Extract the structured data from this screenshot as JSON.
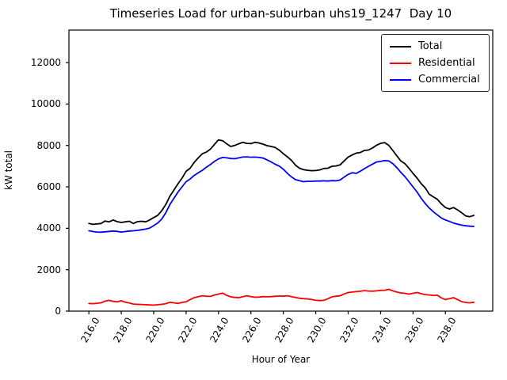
{
  "figure": {
    "background": "#ffffff",
    "text_color": "#000000"
  },
  "chart_data": {
    "type": "line",
    "title": "Timeseries Load for urban-suburban uhs19_1247  Day 10",
    "xlabel": "Hour of Year",
    "ylabel": "kW total",
    "grid": false,
    "xlim": [
      214.77,
      240.92
    ],
    "ylim": [
      0,
      13570
    ],
    "xticks": {
      "values": [
        216,
        218,
        220,
        222,
        224,
        226,
        228,
        230,
        232,
        234,
        236,
        238
      ],
      "labels": [
        "216.0",
        "218.0",
        "220.0",
        "222.0",
        "224.0",
        "226.0",
        "228.0",
        "230.0",
        "232.0",
        "234.0",
        "236.0",
        "238.0"
      ]
    },
    "yticks": {
      "values": [
        0,
        2000,
        4000,
        6000,
        8000,
        10000,
        12000
      ],
      "labels": [
        "0",
        "2000",
        "4000",
        "6000",
        "8000",
        "10000",
        "12000"
      ]
    },
    "legend": {
      "position": "upper right",
      "entries": [
        {
          "label": "Total",
          "color": "#000000"
        },
        {
          "label": "Residential",
          "color": "#ff0000"
        },
        {
          "label": "Commercial",
          "color": "#0000ff"
        }
      ]
    },
    "x": [
      216.0,
      216.25,
      216.5,
      216.75,
      217.0,
      217.25,
      217.5,
      217.75,
      218.0,
      218.25,
      218.5,
      218.75,
      219.0,
      219.25,
      219.5,
      219.75,
      220.0,
      220.25,
      220.5,
      220.75,
      221.0,
      221.25,
      221.5,
      221.75,
      222.0,
      222.25,
      222.5,
      222.75,
      223.0,
      223.25,
      223.5,
      223.75,
      224.0,
      224.25,
      224.5,
      224.75,
      225.0,
      225.25,
      225.5,
      225.75,
      226.0,
      226.25,
      226.5,
      226.75,
      227.0,
      227.25,
      227.5,
      227.75,
      228.0,
      228.25,
      228.5,
      228.75,
      229.0,
      229.25,
      229.5,
      229.75,
      230.0,
      230.25,
      230.5,
      230.75,
      231.0,
      231.25,
      231.5,
      231.75,
      232.0,
      232.25,
      232.5,
      232.75,
      233.0,
      233.25,
      233.5,
      233.75,
      234.0,
      234.25,
      234.5,
      234.75,
      235.0,
      235.25,
      235.5,
      235.75,
      236.0,
      236.25,
      236.5,
      236.75,
      237.0,
      237.25,
      237.5,
      237.75,
      238.0,
      238.25,
      238.5,
      238.75,
      239.0,
      239.25,
      239.5,
      239.75
    ],
    "series": [
      {
        "name": "Total",
        "color": "#000000",
        "values": [
          4230,
          4190,
          4210,
          4230,
          4350,
          4310,
          4400,
          4320,
          4280,
          4310,
          4340,
          4230,
          4320,
          4340,
          4310,
          4400,
          4520,
          4620,
          4850,
          5150,
          5550,
          5850,
          6150,
          6420,
          6750,
          6900,
          7180,
          7400,
          7600,
          7680,
          7820,
          8050,
          8270,
          8230,
          8080,
          7950,
          8000,
          8080,
          8150,
          8100,
          8090,
          8150,
          8120,
          8060,
          7990,
          7950,
          7900,
          7770,
          7600,
          7450,
          7280,
          7050,
          6900,
          6830,
          6800,
          6780,
          6790,
          6820,
          6890,
          6900,
          6990,
          7010,
          7060,
          7250,
          7440,
          7540,
          7630,
          7660,
          7760,
          7780,
          7880,
          8010,
          8100,
          8140,
          8010,
          7760,
          7500,
          7250,
          7120,
          6900,
          6650,
          6420,
          6160,
          5950,
          5650,
          5520,
          5400,
          5180,
          5000,
          4930,
          5000,
          4890,
          4750,
          4600,
          4560,
          4620
        ]
      },
      {
        "name": "Residential",
        "color": "#ff0000",
        "values": [
          370,
          360,
          380,
          400,
          480,
          520,
          470,
          450,
          500,
          430,
          390,
          340,
          330,
          320,
          310,
          300,
          290,
          310,
          330,
          360,
          430,
          400,
          370,
          420,
          450,
          560,
          650,
          700,
          740,
          720,
          710,
          780,
          820,
          870,
          760,
          690,
          660,
          650,
          700,
          740,
          700,
          670,
          680,
          700,
          690,
          700,
          720,
          730,
          720,
          740,
          700,
          660,
          620,
          600,
          590,
          560,
          520,
          510,
          520,
          600,
          690,
          720,
          740,
          830,
          900,
          920,
          940,
          960,
          990,
          970,
          960,
          980,
          1000,
          1010,
          1050,
          980,
          920,
          880,
          860,
          820,
          860,
          900,
          840,
          800,
          780,
          760,
          770,
          640,
          560,
          600,
          650,
          560,
          460,
          420,
          400,
          430
        ]
      },
      {
        "name": "Commercial",
        "color": "#0000ff",
        "values": [
          3880,
          3840,
          3820,
          3810,
          3830,
          3850,
          3870,
          3850,
          3820,
          3840,
          3870,
          3880,
          3900,
          3930,
          3960,
          4010,
          4130,
          4250,
          4450,
          4750,
          5150,
          5450,
          5750,
          6000,
          6250,
          6380,
          6550,
          6680,
          6800,
          6950,
          7080,
          7230,
          7350,
          7420,
          7400,
          7370,
          7360,
          7400,
          7440,
          7450,
          7430,
          7440,
          7420,
          7390,
          7300,
          7200,
          7090,
          7000,
          6850,
          6650,
          6480,
          6350,
          6300,
          6250,
          6270,
          6270,
          6280,
          6280,
          6290,
          6280,
          6300,
          6290,
          6330,
          6470,
          6600,
          6680,
          6650,
          6760,
          6880,
          6990,
          7100,
          7200,
          7230,
          7270,
          7250,
          7120,
          6930,
          6700,
          6500,
          6250,
          6000,
          5750,
          5450,
          5200,
          4980,
          4800,
          4650,
          4500,
          4400,
          4330,
          4250,
          4200,
          4150,
          4120,
          4100,
          4090
        ]
      }
    ]
  }
}
